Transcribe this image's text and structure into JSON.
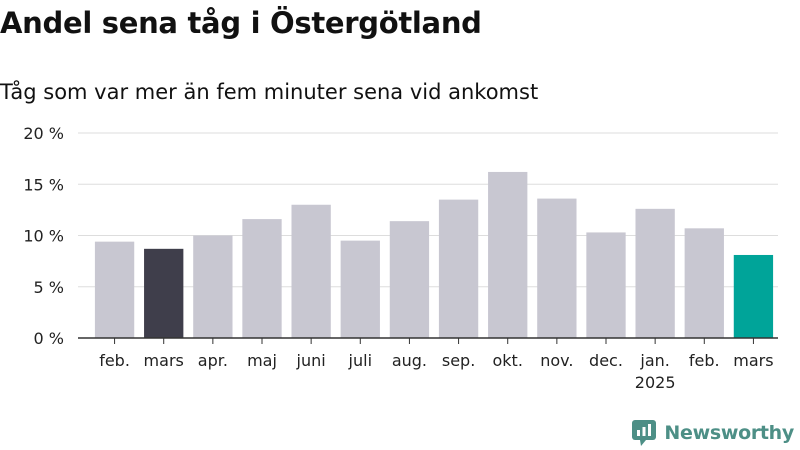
{
  "title": "Andel sena tåg i Östergötland",
  "subtitle": "Tåg som var mer än fem minuter sena vid ankomst",
  "brand": "Newsworthy",
  "colors": {
    "bar_default": "#c8c7d1",
    "bar_first_highlight": "#3f3e4b",
    "bar_last_highlight": "#00a499",
    "gridline": "#dddddd",
    "axis": "#333333",
    "brand": "#4d8f86"
  },
  "chart_data": {
    "type": "bar",
    "categories": [
      "feb.",
      "mars",
      "apr.",
      "maj",
      "juni",
      "juli",
      "aug.",
      "sep.",
      "okt.",
      "nov.",
      "dec.",
      "jan.",
      "feb.",
      "mars"
    ],
    "year_annotation": {
      "category_index": 11,
      "label": "2025"
    },
    "values": [
      9.4,
      8.7,
      10.0,
      11.6,
      13.0,
      9.5,
      11.4,
      13.5,
      16.2,
      13.6,
      10.3,
      12.6,
      10.7,
      8.1
    ],
    "highlight": {
      "1": "bar_first_highlight",
      "13": "bar_last_highlight"
    },
    "ylim": [
      0,
      20
    ],
    "yticks": [
      0,
      5,
      10,
      15,
      20
    ],
    "ytick_labels": [
      "0 %",
      "5 %",
      "10 %",
      "15 %",
      "20 %"
    ],
    "grid": true
  }
}
